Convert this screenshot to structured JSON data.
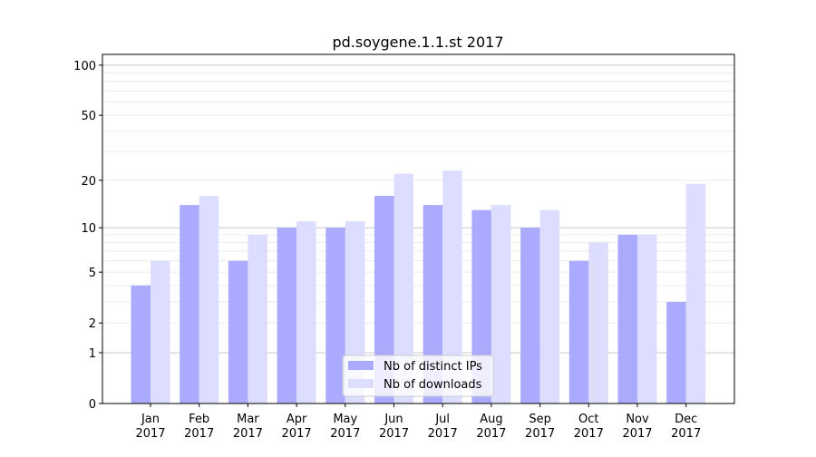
{
  "chart_data": {
    "type": "bar",
    "title": "pd.soygene.1.1.st 2017",
    "xlabel": "",
    "ylabel": "",
    "yscale": "log(1+y)",
    "ylim": [
      0,
      116
    ],
    "yticks": [
      0,
      1,
      2,
      5,
      10,
      20,
      50,
      100
    ],
    "categories": [
      "Jan\n2017",
      "Feb\n2017",
      "Mar\n2017",
      "Apr\n2017",
      "May\n2017",
      "Jun\n2017",
      "Jul\n2017",
      "Aug\n2017",
      "Sep\n2017",
      "Oct\n2017",
      "Nov\n2017",
      "Dec\n2017"
    ],
    "series": [
      {
        "name": "Nb of distinct IPs",
        "color": "#aaaaff",
        "values": [
          4,
          14,
          6,
          10,
          10,
          16,
          14,
          13,
          10,
          6,
          9,
          3
        ]
      },
      {
        "name": "Nb of downloads",
        "color": "#ddddff",
        "values": [
          6,
          16,
          9,
          11,
          11,
          22,
          23,
          14,
          13,
          8,
          9,
          19
        ]
      }
    ],
    "legend": "bottom-center",
    "grid": true
  }
}
